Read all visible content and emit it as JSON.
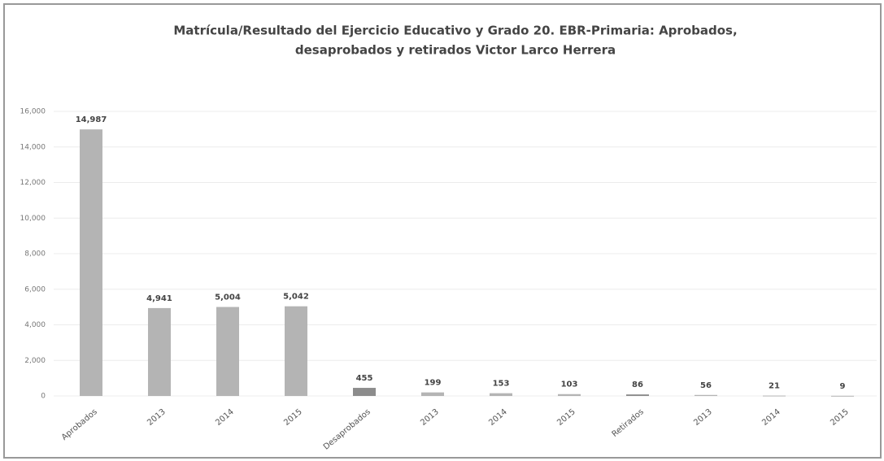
{
  "chart_data": {
    "type": "bar",
    "title": [
      "Matrícula/Resultado  del Ejercicio Educativo y Grado 20. EBR-Primaria:  Aprobados,",
      "desaprobados  y retirados Victor Larco Herrera"
    ],
    "categories": [
      "Aprobados",
      "2013",
      "2014",
      "2015",
      "Desaprobados",
      "2013",
      "2014",
      "2015",
      "Retirados",
      "2013",
      "2014",
      "2015"
    ],
    "values": [
      14987,
      4941,
      5004,
      5042,
      455,
      199,
      153,
      103,
      86,
      56,
      21,
      9
    ],
    "value_labels": [
      "14,987",
      "4,941",
      "5,004",
      "5,042",
      "455",
      "199",
      "153",
      "103",
      "86",
      "56",
      "21",
      "9"
    ],
    "colors": [
      "#b4b4b4",
      "#b4b4b4",
      "#b4b4b4",
      "#b4b4b4",
      "#8c8c8c",
      "#b4b4b4",
      "#b4b4b4",
      "#b4b4b4",
      "#8c8c8c",
      "#b4b4b4",
      "#b4b4b4",
      "#b4b4b4"
    ],
    "ylim": [
      0,
      16000
    ],
    "yticks": [
      {
        "value": 0,
        "label": "0"
      },
      {
        "value": 2000,
        "label": "2,000"
      },
      {
        "value": 4000,
        "label": "4,000"
      },
      {
        "value": 6000,
        "label": "6,000"
      },
      {
        "value": 8000,
        "label": "8,000"
      },
      {
        "value": 10000,
        "label": "10,000"
      },
      {
        "value": 12000,
        "label": "12,000"
      },
      {
        "value": 14000,
        "label": "14,000"
      },
      {
        "value": 16000,
        "label": "16,000"
      }
    ],
    "grid": true
  }
}
